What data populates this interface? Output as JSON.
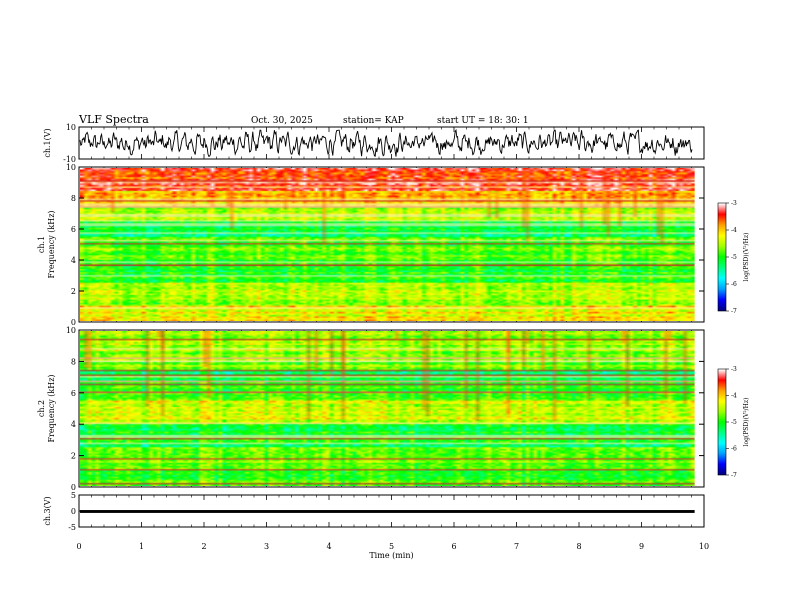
{
  "header": {
    "title": "VLF Spectra",
    "date": "Oct. 30, 2025",
    "station": "station= KAP",
    "start": "start  UT  =    18: 30: 1"
  },
  "chart_data": [
    {
      "type": "line",
      "name": "ch1-waveform",
      "ylabel": "ch.1(V)",
      "ylim": [
        -10,
        10
      ],
      "ytick_labels": [
        "10",
        "-10"
      ],
      "xlim": [
        0,
        10
      ]
    },
    {
      "type": "heatmap",
      "name": "ch1-spectrogram",
      "ylabel": "ch.1  Frequency (kHz)",
      "ylim": [
        0,
        10
      ],
      "ytick_labels": [
        "0",
        "2",
        "4",
        "6",
        "8",
        "10"
      ],
      "data_xmax": 9.85,
      "colorbar": {
        "label": "log(PSD)(V²/Hz)",
        "range": [
          -7,
          -3
        ],
        "tick_labels": [
          "-3",
          "-4",
          "-5",
          "-6",
          "-7"
        ]
      }
    },
    {
      "type": "heatmap",
      "name": "ch2-spectrogram",
      "ylabel": "ch.2  Frequency (kHz)",
      "ylim": [
        0,
        10
      ],
      "ytick_labels": [
        "0",
        "2",
        "4",
        "6",
        "8",
        "10"
      ],
      "data_xmax": 9.85,
      "colorbar": {
        "label": "log(PSD)(V²/Hz)",
        "range": [
          -7,
          -3
        ],
        "tick_labels": [
          "-3",
          "-4",
          "-5",
          "-6",
          "-7"
        ]
      }
    },
    {
      "type": "line",
      "name": "ch3-signal",
      "ylabel": "ch.3(V)",
      "ylim": [
        -5,
        5
      ],
      "ytick_labels": [
        "5",
        "0",
        "-5"
      ],
      "value_band": [
        -0.6,
        0.3
      ],
      "xlim": [
        0,
        10
      ],
      "xlabel": "Time  (min)",
      "xtick_labels": [
        "0",
        "1",
        "2",
        "3",
        "4",
        "5",
        "6",
        "7",
        "8",
        "9",
        "10"
      ]
    }
  ],
  "colors": {
    "scale": [
      "#000080",
      "#0000ff",
      "#00a0ff",
      "#00ffff",
      "#00ff80",
      "#00ff00",
      "#a0ff00",
      "#ffff00",
      "#ffa000",
      "#ff0000",
      "#ffffff"
    ]
  }
}
